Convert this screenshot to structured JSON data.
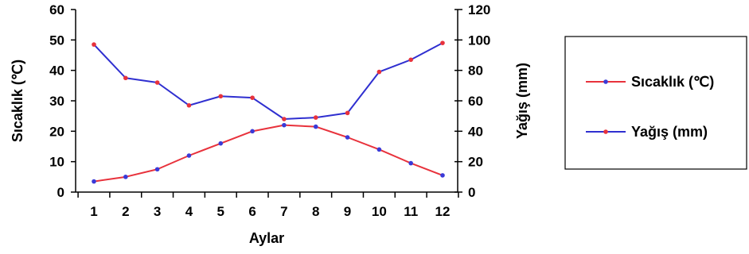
{
  "chart_data": {
    "type": "line",
    "title": "",
    "xlabel": "Aylar",
    "ylabel_left": "Sıcaklık (℃)",
    "ylabel_right": "Yağış (mm)",
    "x": [
      "1",
      "2",
      "3",
      "4",
      "5",
      "6",
      "7",
      "8",
      "9",
      "10",
      "11",
      "12"
    ],
    "ylim_left": [
      0,
      60
    ],
    "yticks_left": [
      "0",
      "10",
      "20",
      "30",
      "40",
      "50",
      "60"
    ],
    "ylim_right": [
      0,
      120
    ],
    "yticks_right": [
      "0",
      "20",
      "40",
      "60",
      "80",
      "100",
      "120"
    ],
    "grid": false,
    "legend_position": "right",
    "series": [
      {
        "name": "Sıcaklık (℃)",
        "axis": "left",
        "color": "#e8323c",
        "marker_color": "#3a3ad8",
        "values": [
          3.5,
          5,
          7.5,
          12,
          16,
          20,
          22,
          21.5,
          18,
          14,
          9.5,
          5.5
        ]
      },
      {
        "name": "Yağış (mm)",
        "axis": "right",
        "color": "#2f2fd0",
        "marker_color": "#e8323c",
        "values": [
          97,
          75,
          72,
          57,
          63,
          62,
          48,
          49,
          52,
          79,
          87,
          98
        ]
      }
    ]
  }
}
